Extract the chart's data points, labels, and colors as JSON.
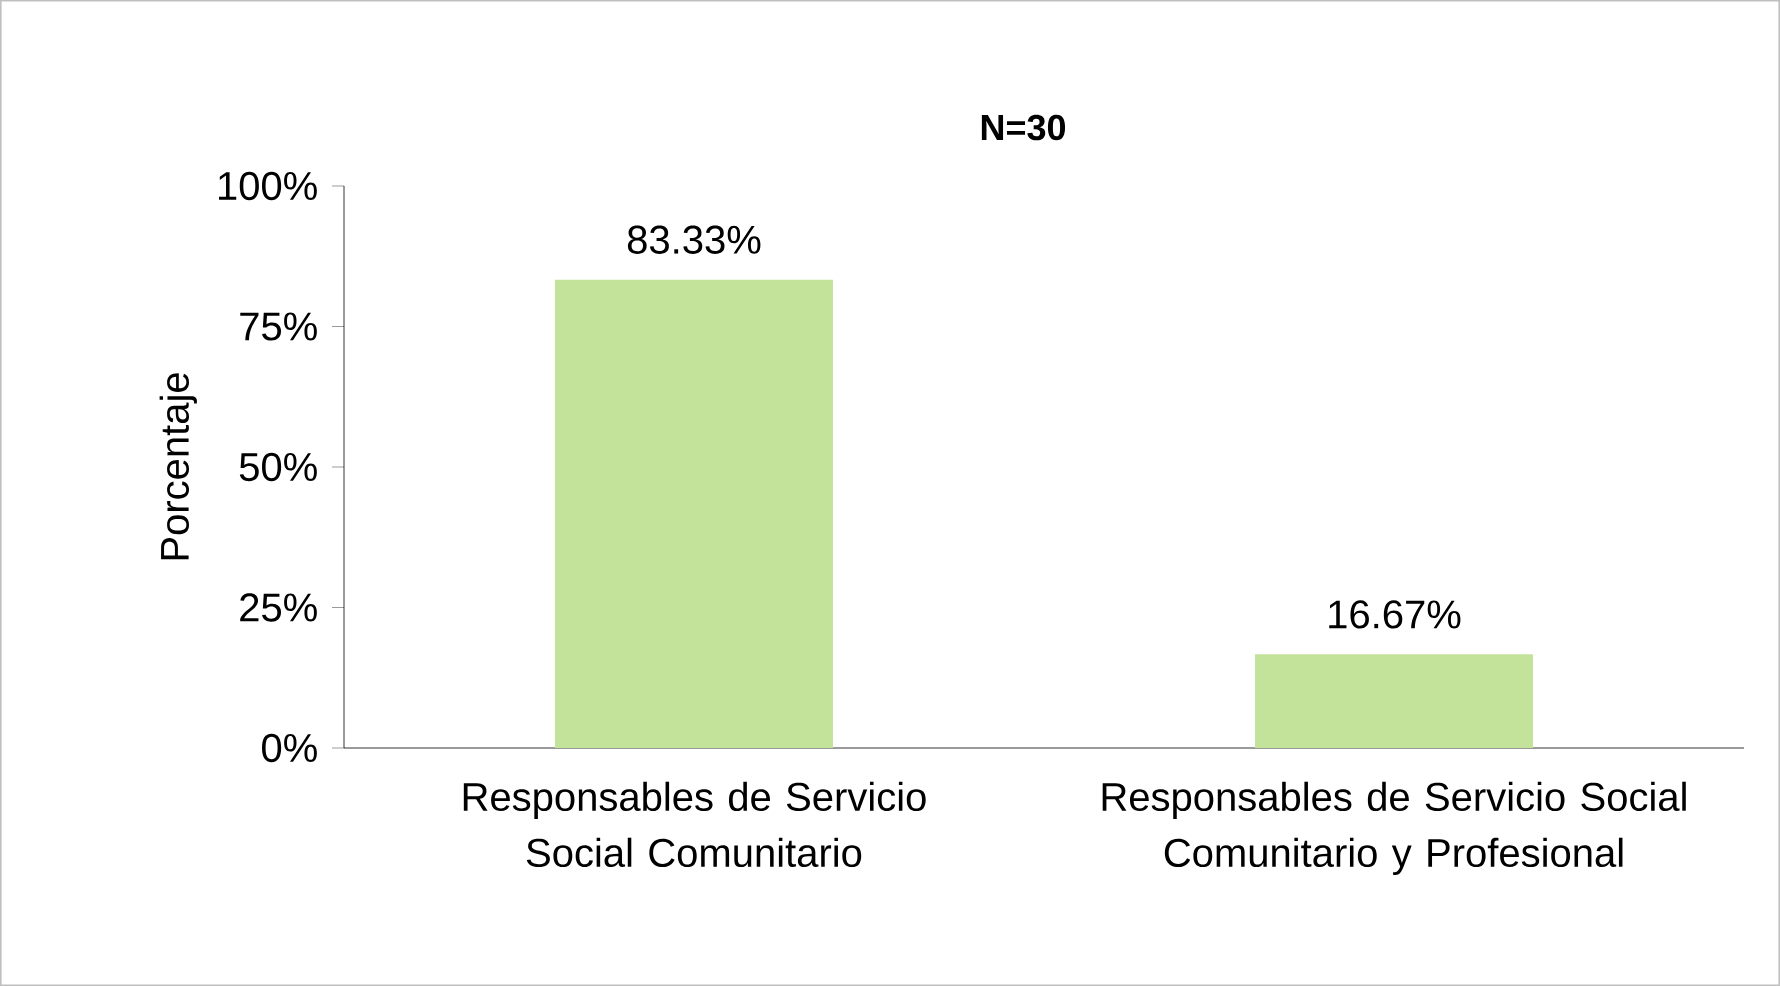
{
  "chart_data": {
    "type": "bar",
    "title": "N=30",
    "ylabel": "Porcentaje",
    "categories": [
      "Responsables de Servicio Social Comunitario",
      "Responsables de Servicio Social Comunitario y Profesional"
    ],
    "values": [
      83.33,
      16.67
    ],
    "value_labels": [
      "83.33%",
      "16.67%"
    ],
    "color": "#c3e29a",
    "ylim": [
      0,
      100
    ],
    "yticks": [
      {
        "value": 0,
        "label": "0%"
      },
      {
        "value": 25,
        "label": "25%"
      },
      {
        "value": 50,
        "label": "50%"
      },
      {
        "value": 75,
        "label": "75%"
      },
      {
        "value": 100,
        "label": "100%"
      }
    ],
    "grid": false
  }
}
